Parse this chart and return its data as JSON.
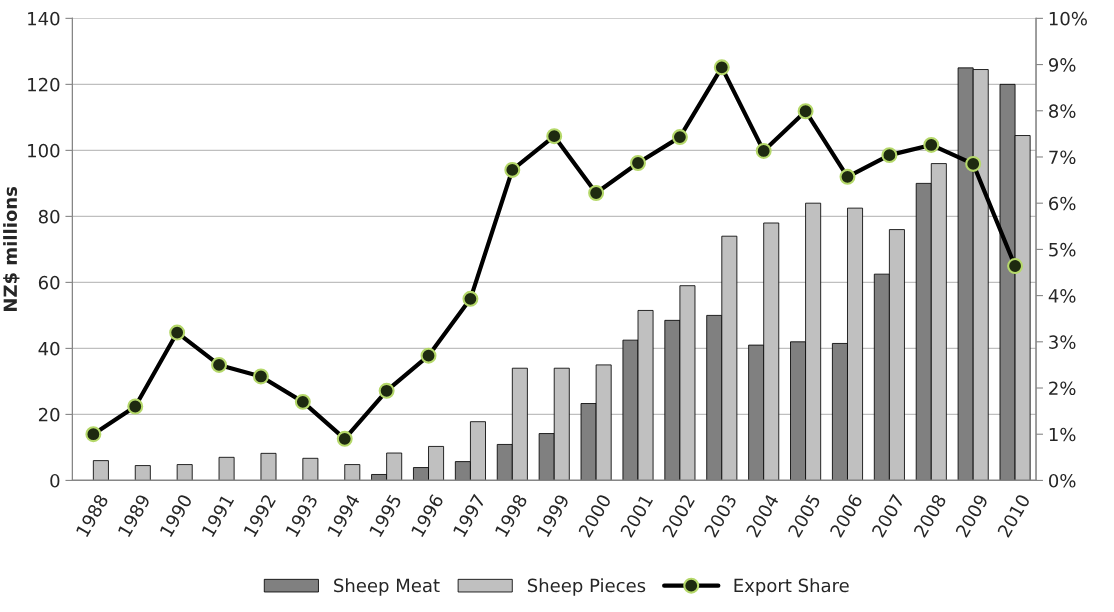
{
  "chart_data": {
    "type": "bar",
    "ylabel": "NZ$ millions",
    "categories": [
      "1988",
      "1989",
      "1990",
      "1991",
      "1992",
      "1993",
      "1994",
      "1995",
      "1996",
      "1997",
      "1998",
      "1999",
      "2000",
      "2001",
      "2002",
      "2003",
      "2004",
      "2005",
      "2006",
      "2007",
      "2008",
      "2009",
      "2010"
    ],
    "series": [
      {
        "name": "Sheep Meat",
        "color": "#808080",
        "values": [
          null,
          null,
          null,
          null,
          null,
          null,
          null,
          1.8,
          3.9,
          5.7,
          10.9,
          14.2,
          23.3,
          42.5,
          48.5,
          50,
          41,
          42,
          41.5,
          62.5,
          90,
          125,
          120
        ]
      },
      {
        "name": "Sheep Pieces",
        "color": "#c0c0c0",
        "values": [
          6,
          4.5,
          4.8,
          7,
          8.2,
          6.7,
          4.8,
          8.3,
          10.3,
          17.8,
          34,
          34,
          35,
          51.5,
          59,
          74,
          78,
          84,
          82.5,
          76,
          96,
          124.5,
          104.5
        ]
      },
      {
        "name": "Export Share",
        "type": "line",
        "axis": "y2",
        "color": "#000000",
        "marker": "circle",
        "values": [
          1.0,
          1.6,
          3.2,
          2.5,
          2.25,
          1.7,
          0.9,
          1.94,
          2.7,
          3.93,
          6.72,
          7.45,
          6.22,
          6.87,
          7.43,
          8.94,
          7.13,
          7.99,
          6.57,
          7.04,
          7.26,
          6.85,
          4.64
        ]
      }
    ],
    "ylim": [
      0,
      140
    ],
    "yticks": [
      0,
      20,
      40,
      60,
      80,
      100,
      120,
      140
    ],
    "y2lim": [
      0,
      10
    ],
    "y2ticks": [
      {
        "value": 0,
        "label": "0%"
      },
      {
        "value": 1,
        "label": "1%"
      },
      {
        "value": 2,
        "label": "2%"
      },
      {
        "value": 3,
        "label": "3%"
      },
      {
        "value": 4,
        "label": "4%"
      },
      {
        "value": 5,
        "label": "5%"
      },
      {
        "value": 6,
        "label": "6%"
      },
      {
        "value": 7,
        "label": "7%"
      },
      {
        "value": 8,
        "label": "8%"
      },
      {
        "value": 9,
        "label": "9%"
      },
      {
        "value": 10,
        "label": "10%"
      }
    ],
    "grid": "y",
    "legend": "bottom"
  }
}
